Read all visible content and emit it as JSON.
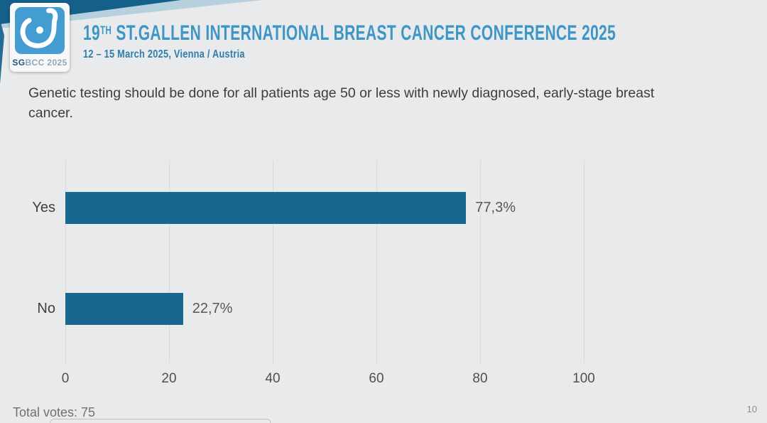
{
  "page": {
    "background_color": "#e9eaec",
    "accent_dark_teal": "#14608a",
    "accent_blue": "#3e96c6"
  },
  "header": {
    "logo": {
      "sg": "SG",
      "bcc": "BCC",
      "year": " 2025",
      "icon": "sgbcc-breast-drop-icon",
      "icon_bg": "#449dd0"
    },
    "title_num": "19",
    "title_sup": "TH",
    "title_rest": " ST.GALLEN INTERNATIONAL BREAST CANCER CONFERENCE 2025",
    "subtitle": "12 – 15 March 2025, Vienna / Austria"
  },
  "question": "Genetic testing should be done for all patients age 50 or less with newly diagnosed, early-stage breast cancer.",
  "chart_data": {
    "type": "bar",
    "orientation": "horizontal",
    "title": "Genetic testing should be done for all patients age 50 or less with newly diagnosed, early-stage breast cancer.",
    "categories": [
      "Yes",
      "No"
    ],
    "values": [
      77.3,
      22.7
    ],
    "value_labels": [
      "77,3%",
      "22,7%"
    ],
    "xlim": [
      0,
      100
    ],
    "xtick_values": [
      0,
      20,
      40,
      60,
      80,
      100
    ],
    "xtick_labels": [
      "0",
      "20",
      "40",
      "60",
      "80",
      "100"
    ],
    "grid": true,
    "legend": false,
    "bar_color": "#17678f",
    "total_votes": 75
  },
  "footer": {
    "total_votes_label": "Total votes: 75",
    "page_number": "10"
  }
}
